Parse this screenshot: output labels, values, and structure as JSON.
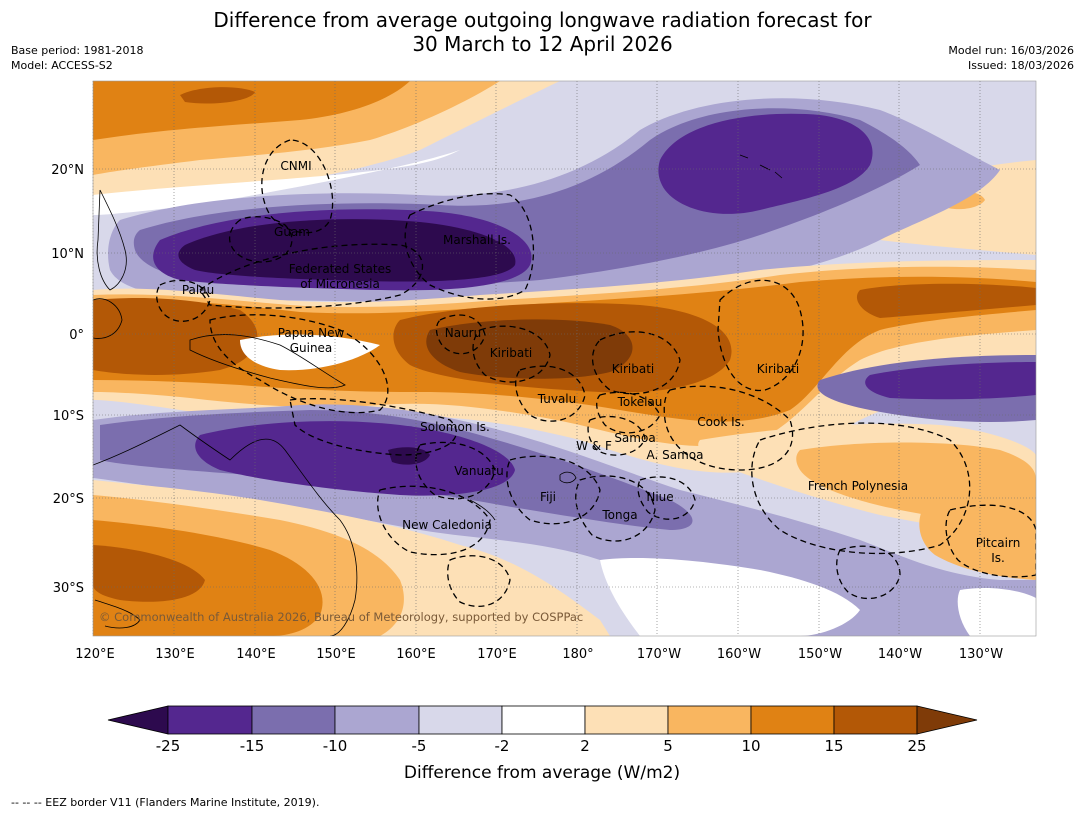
{
  "title": {
    "line1": "Difference from average outgoing longwave radiation forecast for",
    "line2": "30 March to 12 April 2026"
  },
  "meta": {
    "base_period": "Base period: 1981-2018",
    "model": "Model: ACCESS-S2",
    "model_run": "Model run: 16/03/2026",
    "issued": "Issued: 18/03/2026"
  },
  "map": {
    "lon_labels": [
      "120°E",
      "130°E",
      "140°E",
      "150°E",
      "160°E",
      "170°E",
      "180°",
      "170°W",
      "160°W",
      "150°W",
      "140°W",
      "130°W"
    ],
    "lat_labels": [
      "20°N",
      "10°N",
      "0°",
      "10°S",
      "20°S",
      "30°S"
    ],
    "places": [
      "CNMI",
      "Guam",
      "Marshall Is.",
      "Federated States",
      "of Micronesia",
      "Palau",
      "Papua New",
      "Guinea",
      "Nauru",
      "Kiribati",
      "Kiribati",
      "Kiribati",
      "Tuvalu",
      "Tokelau",
      "Cook Is.",
      "Solomon Is.",
      "W & F",
      "Samoa",
      "A. Samoa",
      "Vanuatu",
      "Fiji",
      "Niue",
      "Tonga",
      "French Polynesia",
      "New Caledonia",
      "Pitcairn",
      "Is."
    ],
    "copyright": "© Commonwealth of Australia 2026, Bureau of Meteorology, supported by COSPPac"
  },
  "colorbar": {
    "ticks": [
      "-25",
      "-15",
      "-10",
      "-5",
      "-2",
      "2",
      "5",
      "10",
      "15",
      "25"
    ],
    "colors": [
      "#2d0a4e",
      "#54278f",
      "#7b6eae",
      "#aba6d1",
      "#d8d8ea",
      "#ffffff",
      "#fde0b6",
      "#f9b660",
      "#e08214",
      "#b35806",
      "#7f3b08"
    ],
    "label": "Difference from average (W/m2)"
  },
  "footnote": "-- -- -- EEZ border V11 (Flanders Marine Institute, 2019)."
}
